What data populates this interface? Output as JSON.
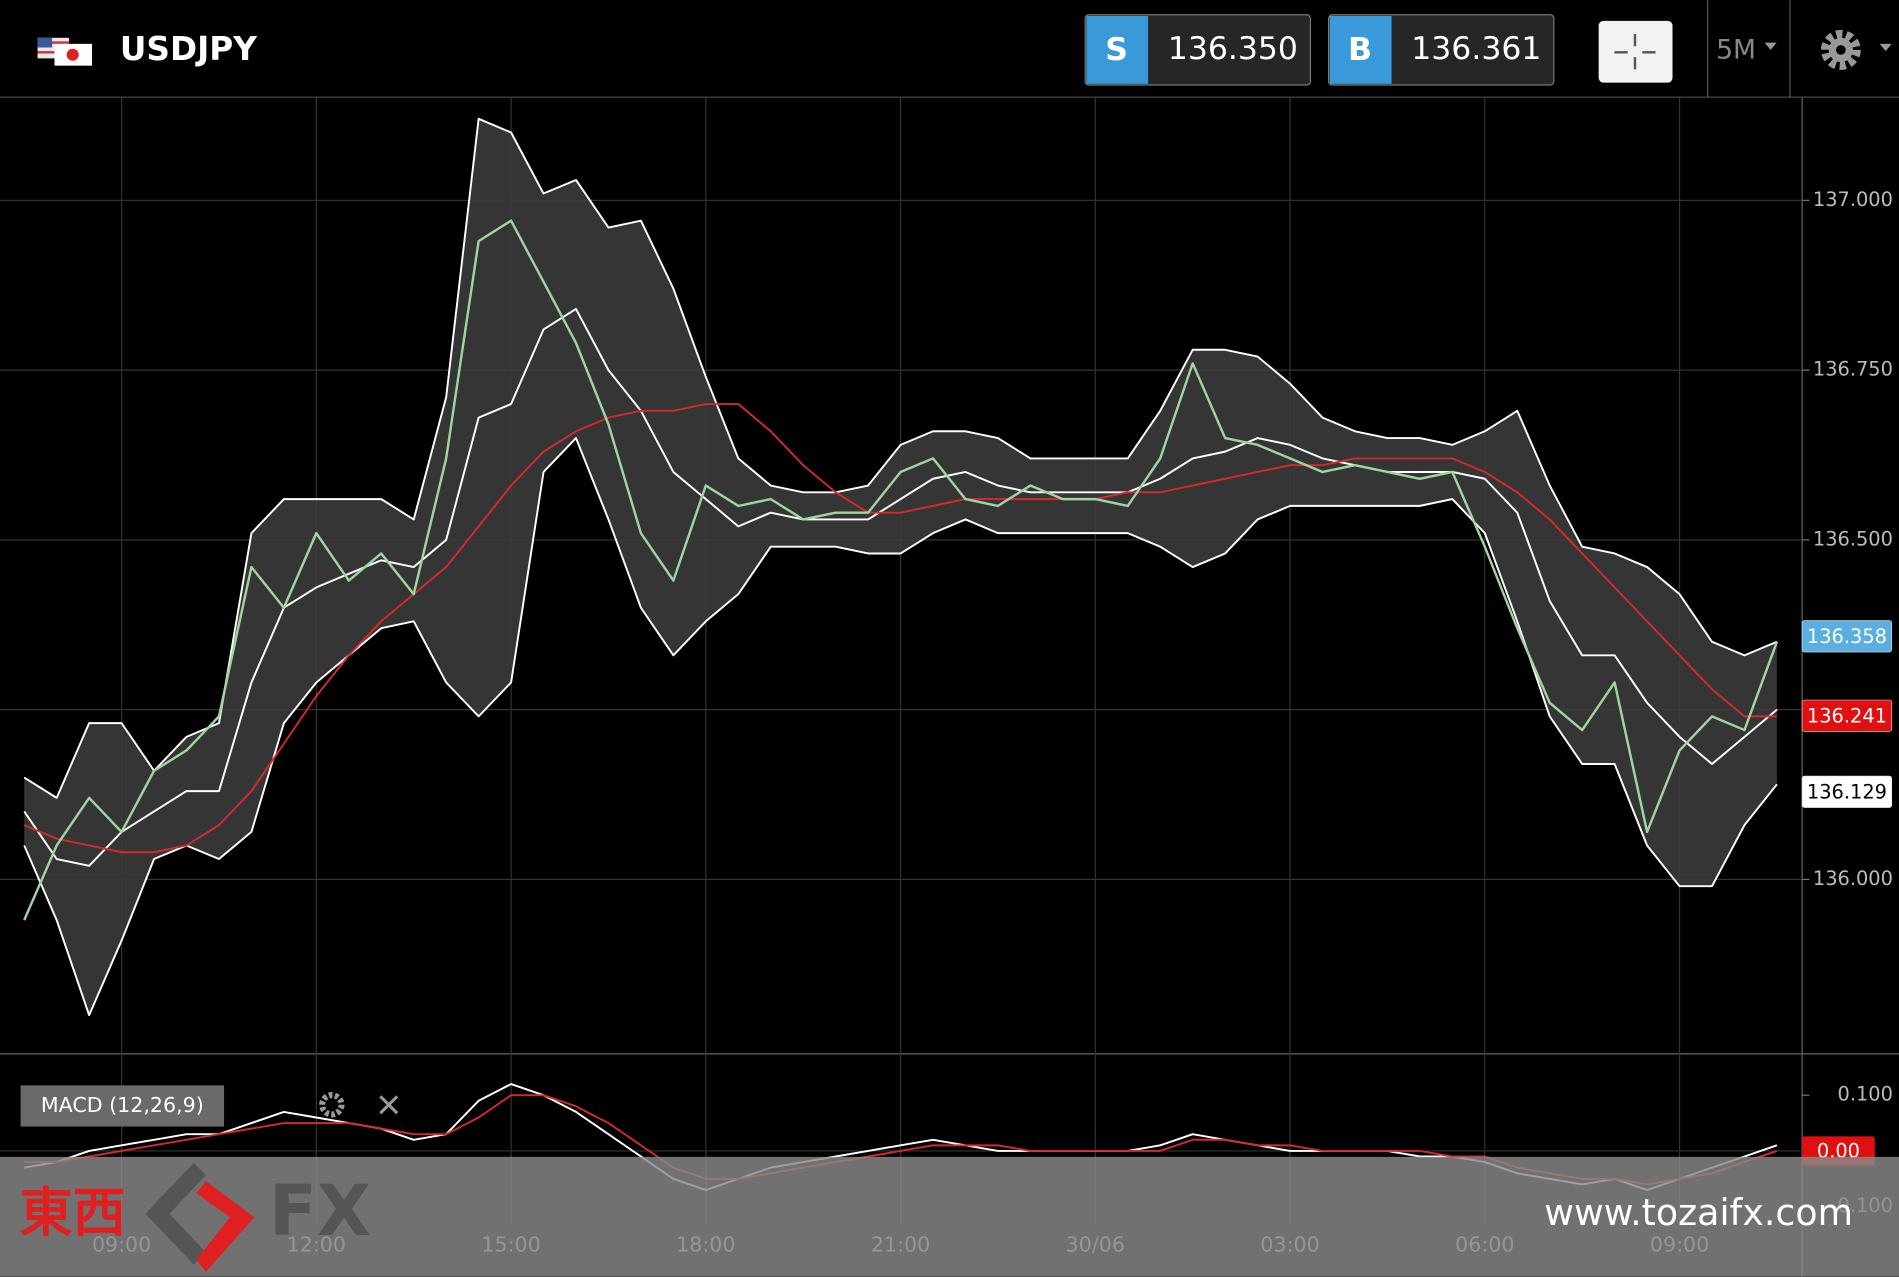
{
  "header": {
    "symbol": "USDJPY",
    "sell": {
      "label": "S",
      "price": "136.350"
    },
    "buy": {
      "label": "B",
      "price": "136.361"
    },
    "timeframe": "5M"
  },
  "chart_data": [
    {
      "type": "line",
      "categories": [
        null,
        null,
        null,
        "09:00",
        null,
        null,
        null,
        null,
        null,
        "12:00",
        null,
        null,
        null,
        null,
        null,
        "15:00",
        null,
        null,
        null,
        null,
        null,
        "18:00",
        null,
        null,
        null,
        null,
        null,
        "21:00",
        null,
        null,
        null,
        null,
        null,
        "30/06",
        null,
        null,
        null,
        null,
        null,
        "03:00",
        null,
        null,
        null,
        null,
        null,
        "06:00",
        null,
        null,
        null,
        null,
        null,
        "09:00",
        null,
        null,
        null
      ],
      "series": [
        {
          "color": "#ffffff",
          "values": [
            136.15,
            136.12,
            136.23,
            136.23,
            136.16,
            136.21,
            136.23,
            136.51,
            136.56,
            136.56,
            136.56,
            136.56,
            136.53,
            136.71,
            137.12,
            137.1,
            137.01,
            137.03,
            136.96,
            136.97,
            136.87,
            136.74,
            136.62,
            136.58,
            136.57,
            136.57,
            136.58,
            136.64,
            136.66,
            136.66,
            136.65,
            136.62,
            136.62,
            136.62,
            136.62,
            136.69,
            136.78,
            136.78,
            136.77,
            136.73,
            136.68,
            136.66,
            136.65,
            136.65,
            136.64,
            136.66,
            136.69,
            136.58,
            136.49,
            136.48,
            136.46,
            136.42,
            136.35,
            136.33,
            136.35
          ]
        },
        {
          "color": "#ffffff",
          "values": [
            136.05,
            135.94,
            135.8,
            135.91,
            136.03,
            136.05,
            136.03,
            136.07,
            136.23,
            136.29,
            136.33,
            136.37,
            136.38,
            136.29,
            136.24,
            136.29,
            136.6,
            136.65,
            136.53,
            136.4,
            136.33,
            136.38,
            136.42,
            136.49,
            136.49,
            136.49,
            136.48,
            136.48,
            136.51,
            136.53,
            136.51,
            136.51,
            136.51,
            136.51,
            136.51,
            136.49,
            136.46,
            136.48,
            136.53,
            136.55,
            136.55,
            136.55,
            136.55,
            136.55,
            136.56,
            136.51,
            136.38,
            136.24,
            136.17,
            136.17,
            136.05,
            135.99,
            135.99,
            136.08,
            136.14
          ]
        },
        {
          "color": "#ffffff",
          "values": [
            136.1,
            136.03,
            136.02,
            136.07,
            136.1,
            136.13,
            136.13,
            136.29,
            136.4,
            136.43,
            136.45,
            136.47,
            136.46,
            136.5,
            136.68,
            136.7,
            136.81,
            136.84,
            136.75,
            136.69,
            136.6,
            136.56,
            136.52,
            136.54,
            136.53,
            136.53,
            136.53,
            136.56,
            136.59,
            136.6,
            136.58,
            136.57,
            136.57,
            136.57,
            136.57,
            136.59,
            136.62,
            136.63,
            136.65,
            136.64,
            136.62,
            136.61,
            136.6,
            136.6,
            136.6,
            136.59,
            136.54,
            136.41,
            136.33,
            136.33,
            136.26,
            136.21,
            136.17,
            136.21,
            136.25
          ]
        },
        {
          "color": "#d42a2a",
          "values": [
            136.08,
            136.06,
            136.05,
            136.04,
            136.04,
            136.05,
            136.08,
            136.13,
            136.2,
            136.27,
            136.33,
            136.38,
            136.42,
            136.46,
            136.52,
            136.58,
            136.63,
            136.66,
            136.68,
            136.69,
            136.69,
            136.7,
            136.7,
            136.66,
            136.61,
            136.57,
            136.54,
            136.54,
            136.55,
            136.56,
            136.56,
            136.56,
            136.56,
            136.56,
            136.57,
            136.57,
            136.58,
            136.59,
            136.6,
            136.61,
            136.61,
            136.62,
            136.62,
            136.62,
            136.62,
            136.6,
            136.57,
            136.53,
            136.48,
            136.43,
            136.38,
            136.33,
            136.28,
            136.24,
            136.24
          ]
        },
        {
          "color": "#9fd69f",
          "values": [
            135.94,
            136.05,
            136.12,
            136.07,
            136.16,
            136.19,
            136.24,
            136.46,
            136.4,
            136.51,
            136.44,
            136.48,
            136.42,
            136.62,
            136.94,
            136.97,
            136.88,
            136.79,
            136.67,
            136.51,
            136.44,
            136.58,
            136.55,
            136.56,
            136.53,
            136.54,
            136.54,
            136.6,
            136.62,
            136.56,
            136.55,
            136.58,
            136.56,
            136.56,
            136.55,
            136.62,
            136.76,
            136.65,
            136.64,
            136.62,
            136.6,
            136.61,
            136.6,
            136.59,
            136.6,
            136.49,
            136.37,
            136.26,
            136.22,
            136.29,
            136.07,
            136.19,
            136.24,
            136.22,
            136.35
          ]
        }
      ],
      "band_fill": "#3b3b3b",
      "ylim": [
        135.743,
        137.152
      ],
      "yticks": [
        {
          "value": 136.0,
          "label": "136.000"
        },
        {
          "value": 136.25,
          "label": ""
        },
        {
          "value": 136.5,
          "label": "136.500"
        },
        {
          "value": 136.75,
          "label": "136.750"
        },
        {
          "value": 137.0,
          "label": "137.000"
        }
      ],
      "grid": true,
      "price_tags": [
        {
          "value": 136.358,
          "color": "#5aaee0",
          "text_color": "#ffffff"
        },
        {
          "value": 136.241,
          "color": "#e01010",
          "text_color": "#ffffff"
        },
        {
          "value": 136.129,
          "color": "#ffffff",
          "text_color": "#000000"
        }
      ]
    },
    {
      "type": "line",
      "label": "MACD (12,26,9)",
      "series": [
        {
          "color": "#ffffff",
          "values": [
            -0.03,
            -0.02,
            0,
            0.01,
            0.02,
            0.03,
            0.03,
            0.05,
            0.07,
            0.06,
            0.05,
            0.04,
            0.02,
            0.03,
            0.09,
            0.12,
            0.1,
            0.07,
            0.03,
            -0.01,
            -0.05,
            -0.07,
            -0.05,
            -0.03,
            -0.02,
            -0.01,
            0,
            0.01,
            0.02,
            0.01,
            0,
            0,
            0,
            0,
            0,
            0.01,
            0.03,
            0.02,
            0.01,
            0,
            0,
            0,
            0,
            -0.01,
            -0.01,
            -0.02,
            -0.04,
            -0.05,
            -0.06,
            -0.05,
            -0.07,
            -0.05,
            -0.03,
            -0.01,
            0.01
          ]
        },
        {
          "color": "#d42a2a",
          "values": [
            -0.02,
            -0.02,
            -0.01,
            0,
            0.01,
            0.02,
            0.03,
            0.04,
            0.05,
            0.05,
            0.05,
            0.04,
            0.03,
            0.03,
            0.06,
            0.1,
            0.1,
            0.08,
            0.05,
            0.01,
            -0.03,
            -0.05,
            -0.05,
            -0.04,
            -0.03,
            -0.02,
            -0.01,
            0,
            0.01,
            0.01,
            0.01,
            0,
            0,
            0,
            0,
            0,
            0.02,
            0.02,
            0.01,
            0.01,
            0,
            0,
            0,
            0,
            -0.01,
            -0.01,
            -0.03,
            -0.04,
            -0.05,
            -0.05,
            -0.06,
            -0.05,
            -0.04,
            -0.02,
            0
          ]
        }
      ],
      "ylim": [
        -0.13,
        0.174
      ],
      "yticks": [
        {
          "value": 0.1,
          "label": "0.100"
        },
        {
          "value": -0.1,
          "label": "-0.100"
        }
      ],
      "zero_tag": {
        "value": 0,
        "label": "0.00",
        "color": "#e01010"
      }
    }
  ],
  "watermark": {
    "brand_left": "東西",
    "brand_right": "FX",
    "url": "www.tozaifx.com"
  }
}
